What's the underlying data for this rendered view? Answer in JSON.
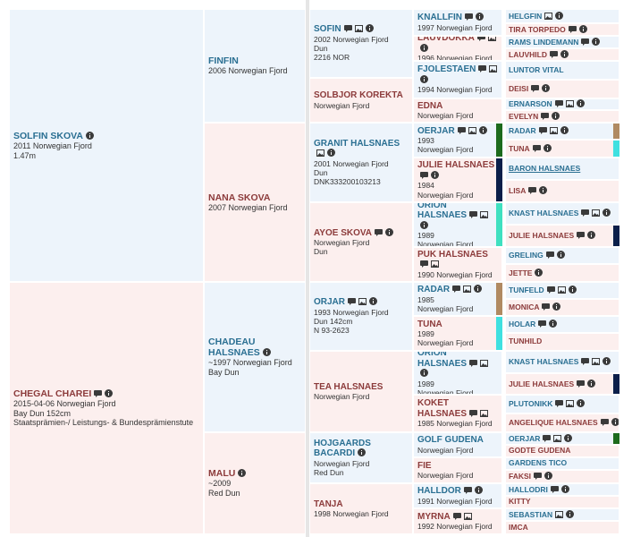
{
  "pedigree": {
    "generations": [
      [
        {
          "name": "Solfin Skova",
          "details": [
            "2011 Norwegian Fjord",
            "1.47m"
          ]
        },
        {
          "name": "Chegal Charei",
          "details": [
            "2015-04-06 Norwegian Fjord",
            "Bay Dun 152cm",
            "Staatsprämien-/ Leistungs- & Bundesprämienstute"
          ]
        }
      ],
      [
        {
          "name": "Finfin",
          "details": [
            "2006 Norwegian Fjord"
          ]
        },
        {
          "name": "Nana Skova",
          "details": [
            "2007 Norwegian Fjord"
          ]
        },
        {
          "name": "Chadeau Halsnaes",
          "details": [
            "~1997 Norwegian Fjord",
            "Bay Dun"
          ]
        },
        {
          "name": "Malu",
          "details": [
            "~2009",
            "Red Dun"
          ]
        }
      ],
      [
        {
          "name": "Sofin",
          "details": [
            "2002 Norwegian Fjord",
            "Dun",
            "2216 NOR"
          ]
        },
        {
          "name": "Solbjor Korekta",
          "details": [
            "Norwegian Fjord"
          ]
        },
        {
          "name": "Granit Halsnaes",
          "details": [
            "2001 Norwegian Fjord",
            "Dun",
            "DNK333200103213"
          ]
        },
        {
          "name": "Ayoe Skova",
          "details": [
            "Norwegian Fjord",
            "Dun"
          ]
        },
        {
          "name": "Orjar",
          "details": [
            "1993 Norwegian Fjord",
            "Dun 142cm",
            "N 93-2623"
          ]
        },
        {
          "name": "Tea Halsnaes",
          "details": [
            "Norwegian Fjord"
          ]
        },
        {
          "name": "Hojgaards Bacardi",
          "details": [
            "Norwegian Fjord",
            "Red Dun"
          ]
        },
        {
          "name": "Tanja",
          "details": [
            "1998 Norwegian Fjord"
          ]
        }
      ],
      [
        {
          "name": "Knallfin",
          "details": [
            "1997 Norwegian Fjord"
          ]
        },
        {
          "name": "Lauvdokka",
          "details": [
            "1996 Norwegian Fjord"
          ]
        },
        {
          "name": "Fjolestaen",
          "details": [
            "1994 Norwegian Fjord"
          ]
        },
        {
          "name": "Edna",
          "details": [
            "Norwegian Fjord"
          ]
        },
        {
          "name": "Oerjar",
          "details": [
            "1993",
            "Norwegian Fjord"
          ]
        },
        {
          "name": "Julie Halsnaes",
          "details": [
            "1984",
            "Norwegian Fjord"
          ]
        },
        {
          "name": "Orion Halsnaes",
          "details": [
            "1989",
            "Norwegian Fjord"
          ]
        },
        {
          "name": "Puk Halsnaes",
          "details": [
            "1990 Norwegian Fjord"
          ]
        },
        {
          "name": "Radar",
          "details": [
            "1985",
            "Norwegian Fjord"
          ]
        },
        {
          "name": "Tuna",
          "details": [
            "1989",
            "Norwegian Fjord"
          ]
        },
        {
          "name": "Orion Halsnaes",
          "details": [
            "1989",
            "Norwegian Fjord"
          ]
        },
        {
          "name": "Koket Halsnaes",
          "details": [
            "1985 Norwegian Fjord"
          ]
        },
        {
          "name": "Golf Gudena",
          "details": [
            "Norwegian Fjord"
          ]
        },
        {
          "name": "Fie",
          "details": [
            "Norwegian Fjord"
          ]
        },
        {
          "name": "Halldor",
          "details": [
            "1991 Norwegian Fjord"
          ]
        },
        {
          "name": "Myrna",
          "details": [
            "1992 Norwegian Fjord"
          ]
        }
      ],
      [
        {
          "name": "Helgfin"
        },
        {
          "name": "Tira Torpedo"
        },
        {
          "name": "Rams Lindemann"
        },
        {
          "name": "Lauvhild"
        },
        {
          "name": "Luntor Vital"
        },
        {
          "name": "Deisi"
        },
        {
          "name": "Ernarson"
        },
        {
          "name": "Evelyn"
        },
        {
          "name": "Radar"
        },
        {
          "name": "Tuna"
        },
        {
          "name": "Baron Halsnaes"
        },
        {
          "name": "Lisa"
        },
        {
          "name": "Knast Halsnaes"
        },
        {
          "name": "Julie Halsnaes"
        },
        {
          "name": "Greling"
        },
        {
          "name": "Jette"
        },
        {
          "name": "Tunfeld"
        },
        {
          "name": "Monica"
        },
        {
          "name": "Holar"
        },
        {
          "name": "Tunhild"
        },
        {
          "name": "Knast Halsnaes"
        },
        {
          "name": "Julie Halsnaes"
        },
        {
          "name": "Plutonikk"
        },
        {
          "name": "Angelique Halsnaes"
        },
        {
          "name": "Oerjar"
        },
        {
          "name": "Godte Gudena"
        },
        {
          "name": "Gardens Tico"
        },
        {
          "name": "Faksi"
        },
        {
          "name": "Hallodri"
        },
        {
          "name": "Kitty"
        },
        {
          "name": "Sebastian"
        },
        {
          "name": "Imca"
        }
      ]
    ]
  }
}
